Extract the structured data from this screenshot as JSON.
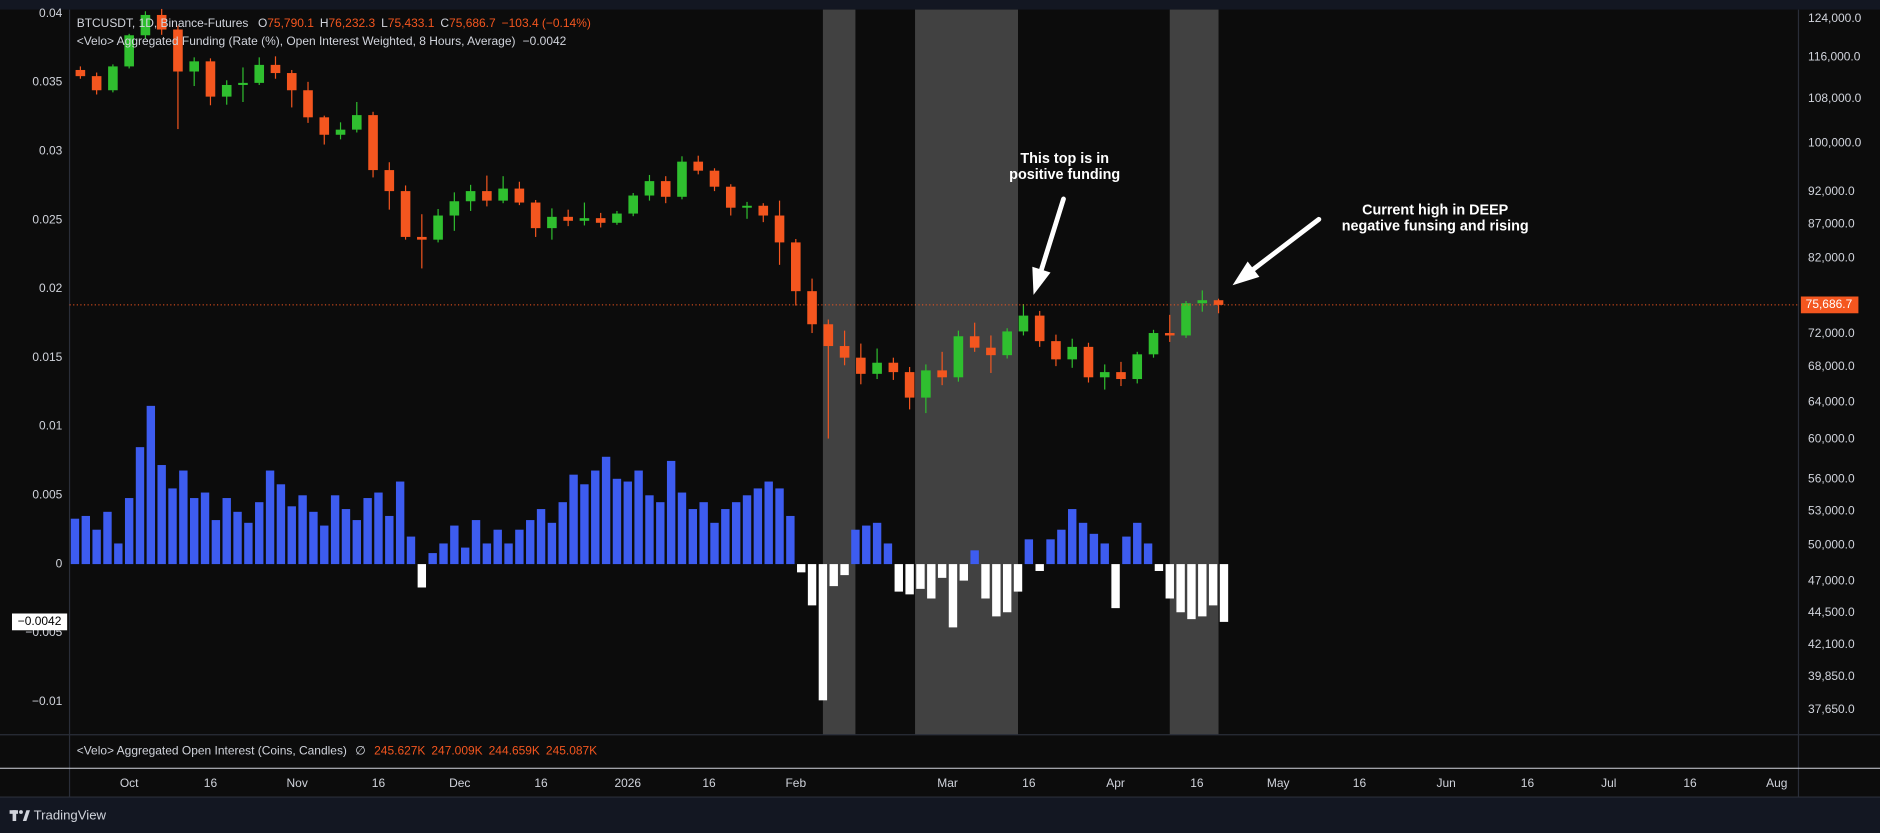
{
  "chart_data": [
    {
      "type": "candlestick",
      "title": "BTCUSDT, 1D, Binance-Futures",
      "ohlc_legend": [
        {
          "key": "O",
          "value": "75,790.1"
        },
        {
          "key": "H",
          "value": "76,232.3"
        },
        {
          "key": "L",
          "value": "75,433.1"
        },
        {
          "key": "C",
          "value": "75,686.7"
        }
      ],
      "change": "−103.4 (−0.14%)",
      "x": [
        -9,
        -6,
        -3,
        0,
        3,
        6,
        9,
        12,
        15,
        18,
        21,
        24,
        27,
        30,
        33,
        36,
        39,
        42,
        45,
        48,
        51,
        54,
        57,
        60,
        63,
        66,
        69,
        72,
        75,
        78,
        81,
        84,
        87,
        90,
        93,
        96,
        99,
        102,
        105,
        108,
        111,
        114,
        117,
        120,
        123,
        126,
        129,
        132,
        135,
        138,
        141,
        144,
        147,
        150,
        153,
        156,
        159,
        162,
        165,
        168,
        171,
        174,
        177,
        180,
        183,
        186,
        189,
        192,
        195,
        198,
        201
      ],
      "open": [
        113500,
        112300,
        109600,
        114200,
        120500,
        124800,
        121700,
        113200,
        115200,
        108400,
        110600,
        111000,
        114500,
        112900,
        109600,
        104600,
        101500,
        102400,
        105000,
        95500,
        92100,
        85100,
        84700,
        88300,
        90500,
        92100,
        90600,
        92500,
        90300,
        86400,
        88100,
        87500,
        87900,
        87200,
        88600,
        91400,
        93700,
        91200,
        96900,
        95400,
        92800,
        89500,
        89800,
        88300,
        84300,
        77500,
        73200,
        70500,
        69100,
        67200,
        68500,
        67400,
        64500,
        67600,
        66800,
        71700,
        70300,
        69400,
        72300,
        74300,
        71100,
        68900,
        70400,
        66800,
        67400,
        66600,
        69500,
        72100,
        71800,
        75900,
        76300
      ],
      "high": [
        114200,
        113000,
        114600,
        120800,
        125600,
        126100,
        122500,
        116000,
        115800,
        111500,
        114000,
        116000,
        116200,
        113500,
        111200,
        104900,
        103700,
        107400,
        105600,
        96800,
        93000,
        88500,
        89300,
        91900,
        93100,
        94600,
        94500,
        93600,
        90700,
        89400,
        89200,
        90300,
        88700,
        89000,
        91800,
        94700,
        94500,
        97800,
        97900,
        95800,
        93200,
        90400,
        90200,
        90600,
        84800,
        79200,
        73800,
        72400,
        70800,
        70200,
        69100,
        68000,
        68300,
        69800,
        72400,
        73400,
        71800,
        72700,
        75800,
        74900,
        71900,
        71400,
        70900,
        68300,
        68600,
        69800,
        72500,
        74400,
        76200,
        77600,
        76500
      ],
      "low": [
        111800,
        108800,
        109200,
        113800,
        119800,
        120600,
        102500,
        110400,
        106800,
        106900,
        107400,
        110600,
        111800,
        106400,
        103600,
        99800,
        100700,
        101900,
        94300,
        89200,
        84700,
        80600,
        84300,
        86000,
        89000,
        89700,
        90200,
        89900,
        85100,
        84700,
        86700,
        86800,
        86500,
        86900,
        88200,
        90600,
        90200,
        90800,
        94800,
        92100,
        88300,
        87800,
        87300,
        81100,
        75600,
        72100,
        60100,
        68200,
        66000,
        66600,
        66500,
        63200,
        62800,
        65900,
        66300,
        69800,
        67300,
        69000,
        71800,
        70400,
        68100,
        67900,
        66200,
        65400,
        65800,
        66100,
        69100,
        71000,
        71500,
        74800,
        74600
      ],
      "close": [
        112300,
        109600,
        114200,
        120500,
        124800,
        121700,
        113200,
        115200,
        108400,
        110600,
        111000,
        114500,
        112900,
        109600,
        104600,
        101500,
        102400,
        105000,
        95500,
        92100,
        85100,
        84700,
        88300,
        90500,
        92100,
        90600,
        92500,
        90300,
        86400,
        88100,
        87500,
        87900,
        87200,
        88600,
        91400,
        93700,
        91200,
        96900,
        95400,
        92800,
        89500,
        89800,
        88300,
        84300,
        77500,
        73200,
        70500,
        69100,
        67200,
        68500,
        67400,
        64500,
        67600,
        66800,
        71700,
        70300,
        69400,
        72300,
        74300,
        71100,
        68900,
        70400,
        66800,
        67400,
        66600,
        69500,
        72100,
        71800,
        75900,
        76300,
        75686.7
      ],
      "colors": {
        "up": "#2fbf2f",
        "down": "#f4561f"
      },
      "xlim": [
        -11,
        308
      ],
      "xticks": [
        {
          "value": 0,
          "label": "Oct"
        },
        {
          "value": 15,
          "label": "16"
        },
        {
          "value": 31,
          "label": "Nov"
        },
        {
          "value": 46,
          "label": "16"
        },
        {
          "value": 61,
          "label": "Dec"
        },
        {
          "value": 76,
          "label": "16"
        },
        {
          "value": 92,
          "label": "2026"
        },
        {
          "value": 107,
          "label": "16"
        },
        {
          "value": 123,
          "label": "Feb"
        },
        {
          "value": 151,
          "label": "Mar"
        },
        {
          "value": 166,
          "label": "16"
        },
        {
          "value": 182,
          "label": "Apr"
        },
        {
          "value": 197,
          "label": "16"
        },
        {
          "value": 212,
          "label": "May"
        },
        {
          "value": 227,
          "label": "16"
        },
        {
          "value": 243,
          "label": "Jun"
        },
        {
          "value": 258,
          "label": "16"
        },
        {
          "value": 273,
          "label": "Jul"
        },
        {
          "value": 288,
          "label": "16"
        },
        {
          "value": 304,
          "label": "Aug"
        }
      ],
      "ylim": [
        36060,
        125960
      ],
      "log_scale": true,
      "yticks": [
        {
          "value": 124000,
          "label": "124,000.0"
        },
        {
          "value": 116000,
          "label": "116,000.0"
        },
        {
          "value": 108000,
          "label": "108,000.0"
        },
        {
          "value": 100000,
          "label": "100,000.0"
        },
        {
          "value": 92000,
          "label": "92,000.0"
        },
        {
          "value": 87000,
          "label": "87,000.0"
        },
        {
          "value": 82000,
          "label": "82,000.0"
        },
        {
          "value": 72000,
          "label": "72,000.0"
        },
        {
          "value": 68000,
          "label": "68,000.0"
        },
        {
          "value": 64000,
          "label": "64,000.0"
        },
        {
          "value": 60000,
          "label": "60,000.0"
        },
        {
          "value": 56000,
          "label": "56,000.0"
        },
        {
          "value": 53000,
          "label": "53,000.0"
        },
        {
          "value": 50000,
          "label": "50,000.0"
        },
        {
          "value": 47000,
          "label": "47,000.0"
        },
        {
          "value": 44500,
          "label": "44,500.0"
        },
        {
          "value": 42100,
          "label": "42,100.0"
        },
        {
          "value": 39850,
          "label": "39,850.0"
        },
        {
          "value": 37650,
          "label": "37,650.0"
        }
      ],
      "last_price": {
        "value": 75686.7,
        "label": "75,686.7",
        "color": "#f4561f"
      },
      "highlight_ranges": [
        [
          128,
          134
        ],
        [
          145,
          164
        ],
        [
          192,
          201
        ]
      ],
      "highlight_color": "#414141",
      "annotations": [
        {
          "lines": [
            "This top is in",
            "positive funding"
          ]
        },
        {
          "lines": [
            "Current high in DEEP",
            "negative funsing and rising"
          ]
        }
      ]
    },
    {
      "type": "bar",
      "title": "<Velo> Aggregated Funding (Rate (%), Open Interest Weighted, 8 Hours, Average)",
      "current": {
        "value": -0.0042,
        "label": "−0.0042"
      },
      "x": [
        -10,
        -8,
        -6,
        -4,
        -2,
        0,
        2,
        4,
        6,
        8,
        10,
        12,
        14,
        16,
        18,
        20,
        22,
        24,
        26,
        28,
        30,
        32,
        34,
        36,
        38,
        40,
        42,
        44,
        46,
        48,
        50,
        52,
        54,
        56,
        58,
        60,
        62,
        64,
        66,
        68,
        70,
        72,
        74,
        76,
        78,
        80,
        82,
        84,
        86,
        88,
        90,
        92,
        94,
        96,
        98,
        100,
        102,
        104,
        106,
        108,
        110,
        112,
        114,
        116,
        118,
        120,
        122,
        124,
        126,
        128,
        130,
        132,
        134,
        136,
        138,
        140,
        142,
        144,
        146,
        148,
        150,
        152,
        154,
        156,
        158,
        160,
        162,
        164,
        166,
        168,
        170,
        172,
        174,
        176,
        178,
        180,
        182,
        184,
        186,
        188,
        190,
        192,
        194,
        196,
        198,
        200,
        202
      ],
      "values": [
        0.0033,
        0.0035,
        0.0025,
        0.0038,
        0.0015,
        0.0048,
        0.0085,
        0.0115,
        0.0072,
        0.0055,
        0.0068,
        0.0048,
        0.0052,
        0.0032,
        0.0048,
        0.0038,
        0.003,
        0.0045,
        0.0068,
        0.0058,
        0.0042,
        0.005,
        0.0038,
        0.0028,
        0.005,
        0.004,
        0.0032,
        0.0048,
        0.0052,
        0.0035,
        0.006,
        0.002,
        -0.0017,
        0.0008,
        0.0015,
        0.0028,
        0.0012,
        0.0032,
        0.0015,
        0.0025,
        0.0015,
        0.0025,
        0.0032,
        0.004,
        0.003,
        0.0045,
        0.0065,
        0.0058,
        0.0068,
        0.0078,
        0.0062,
        0.006,
        0.0068,
        0.005,
        0.0045,
        0.0075,
        0.0052,
        0.004,
        0.0045,
        0.003,
        0.004,
        0.0045,
        0.005,
        0.0055,
        0.006,
        0.0055,
        0.0035,
        -0.0006,
        -0.003,
        -0.0099,
        -0.0016,
        -0.0008,
        0.0025,
        0.0028,
        0.003,
        0.0015,
        -0.002,
        -0.0022,
        -0.0018,
        -0.0025,
        -0.001,
        -0.0046,
        -0.0012,
        0.001,
        -0.0025,
        -0.0038,
        -0.0035,
        -0.002,
        0.0018,
        -0.0005,
        0.0018,
        0.0025,
        0.004,
        0.003,
        0.0022,
        0.0015,
        -0.0032,
        0.002,
        0.003,
        0.0015,
        -0.0005,
        -0.0025,
        -0.0035,
        -0.004,
        -0.0038,
        -0.003,
        -0.0042
      ],
      "color": "#3d5cf0",
      "negative_color": "#ffffff",
      "xlim": [
        -11,
        308
      ],
      "ylim": [
        -0.0124,
        0.0403
      ],
      "yticks": [
        0.04,
        0.035,
        0.03,
        0.025,
        0.02,
        0.015,
        0.01,
        0.005,
        0,
        {
          "value": -0.005,
          "label": "−0.005"
        },
        {
          "value": -0.01,
          "label": "−0.01"
        }
      ]
    }
  ],
  "oi_pane": {
    "title": "<Velo> Aggregated Open Interest (Coins, Candles)",
    "symbol": "∅",
    "values": [
      "245.627K",
      "247.009K",
      "244.659K",
      "245.087K"
    ]
  },
  "footer": {
    "brand": "TradingView"
  }
}
